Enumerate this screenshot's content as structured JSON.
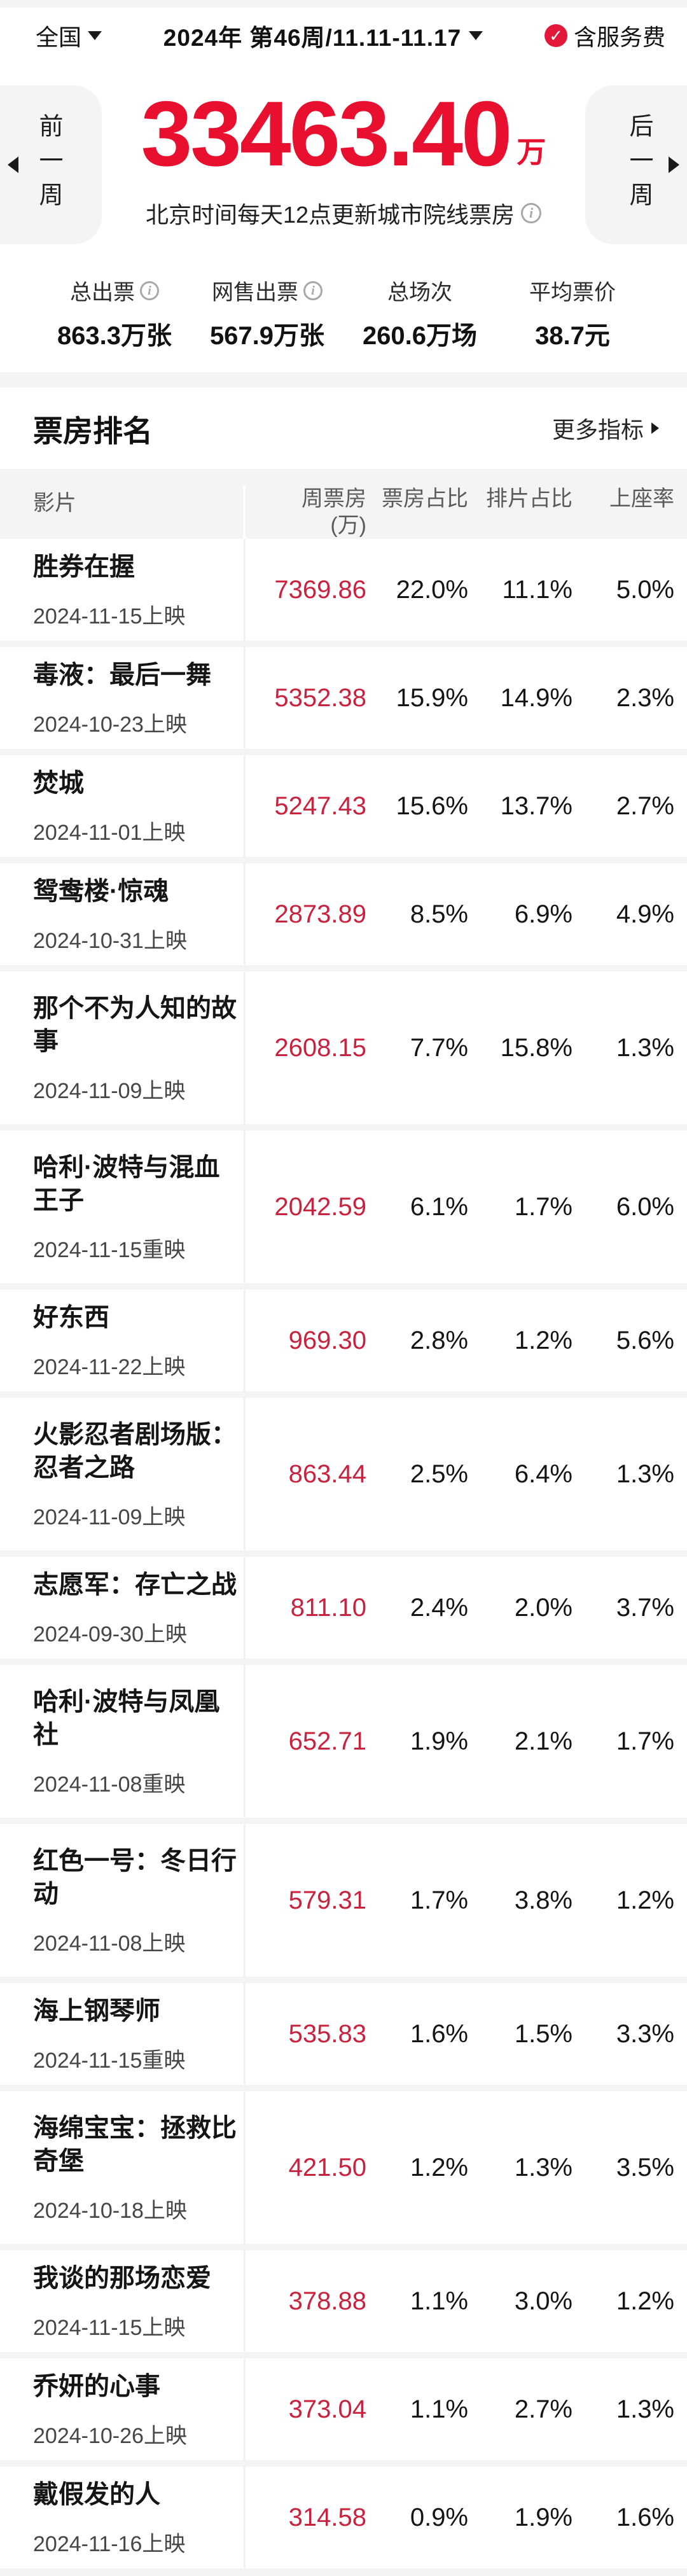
{
  "topbar": {
    "region": "全国",
    "period": "2024年  第46周/11.11-11.17",
    "fee_check": "✓",
    "fee_label": "含服务费"
  },
  "hero": {
    "prev_label": "前一周",
    "next_label": "后一周",
    "total_box": "33463.40",
    "unit": "万",
    "note": "北京时间每天12点更新城市院线票房",
    "info_icon": "i"
  },
  "stats": [
    {
      "label": "总出票",
      "has_info": true,
      "value": "863.3万张"
    },
    {
      "label": "网售出票",
      "has_info": true,
      "value": "567.9万张"
    },
    {
      "label": "总场次",
      "has_info": false,
      "value": "260.6万场"
    },
    {
      "label": "平均票价",
      "has_info": false,
      "value": "38.7元"
    }
  ],
  "ranking": {
    "title": "票房排名",
    "more_label": "更多指标"
  },
  "table": {
    "headers": {
      "film": "影片",
      "week_box": "周票房",
      "week_box_unit": "(万)",
      "box_share": "票房占比",
      "screen_share": "排片占比",
      "attendance": "上座率"
    },
    "rows": [
      {
        "title": "胜券在握",
        "date": "2024-11-15上映",
        "box": "7369.86",
        "box_share": "22.0%",
        "screen_share": "11.1%",
        "attendance": "5.0%"
      },
      {
        "title": "毒液：最后一舞",
        "date": "2024-10-23上映",
        "box": "5352.38",
        "box_share": "15.9%",
        "screen_share": "14.9%",
        "attendance": "2.3%"
      },
      {
        "title": "焚城",
        "date": "2024-11-01上映",
        "box": "5247.43",
        "box_share": "15.6%",
        "screen_share": "13.7%",
        "attendance": "2.7%"
      },
      {
        "title": "鸳鸯楼·惊魂",
        "date": "2024-10-31上映",
        "box": "2873.89",
        "box_share": "8.5%",
        "screen_share": "6.9%",
        "attendance": "4.9%"
      },
      {
        "title": "那个不为人知的故事",
        "date": "2024-11-09上映",
        "box": "2608.15",
        "box_share": "7.7%",
        "screen_share": "15.8%",
        "attendance": "1.3%"
      },
      {
        "title": "哈利·波特与混血王子",
        "date": "2024-11-15重映",
        "box": "2042.59",
        "box_share": "6.1%",
        "screen_share": "1.7%",
        "attendance": "6.0%"
      },
      {
        "title": "好东西",
        "date": "2024-11-22上映",
        "box": "969.30",
        "box_share": "2.8%",
        "screen_share": "1.2%",
        "attendance": "5.6%"
      },
      {
        "title": "火影忍者剧场版：忍者之路",
        "date": "2024-11-09上映",
        "box": "863.44",
        "box_share": "2.5%",
        "screen_share": "6.4%",
        "attendance": "1.3%"
      },
      {
        "title": "志愿军：存亡之战",
        "date": "2024-09-30上映",
        "box": "811.10",
        "box_share": "2.4%",
        "screen_share": "2.0%",
        "attendance": "3.7%"
      },
      {
        "title": "哈利·波特与凤凰社",
        "date": "2024-11-08重映",
        "box": "652.71",
        "box_share": "1.9%",
        "screen_share": "2.1%",
        "attendance": "1.7%"
      },
      {
        "title": "红色一号：冬日行动",
        "date": "2024-11-08上映",
        "box": "579.31",
        "box_share": "1.7%",
        "screen_share": "3.8%",
        "attendance": "1.2%"
      },
      {
        "title": "海上钢琴师",
        "date": "2024-11-15重映",
        "box": "535.83",
        "box_share": "1.6%",
        "screen_share": "1.5%",
        "attendance": "3.3%"
      },
      {
        "title": "海绵宝宝：拯救比奇堡",
        "date": "2024-10-18上映",
        "box": "421.50",
        "box_share": "1.2%",
        "screen_share": "1.3%",
        "attendance": "3.5%"
      },
      {
        "title": "我谈的那场恋爱",
        "date": "2024-11-15上映",
        "box": "378.88",
        "box_share": "1.1%",
        "screen_share": "3.0%",
        "attendance": "1.2%"
      },
      {
        "title": "乔妍的心事",
        "date": "2024-10-26上映",
        "box": "373.04",
        "box_share": "1.1%",
        "screen_share": "2.7%",
        "attendance": "1.3%"
      },
      {
        "title": "戴假发的人",
        "date": "2024-11-16上映",
        "box": "314.58",
        "box_share": "0.9%",
        "screen_share": "1.9%",
        "attendance": "1.6%"
      }
    ]
  },
  "colors": {
    "accent_red_big": "#e8102e",
    "accent_red_table": "#c9223f",
    "badge_red": "#e3173a",
    "band_gray": "#f4f4f6"
  }
}
